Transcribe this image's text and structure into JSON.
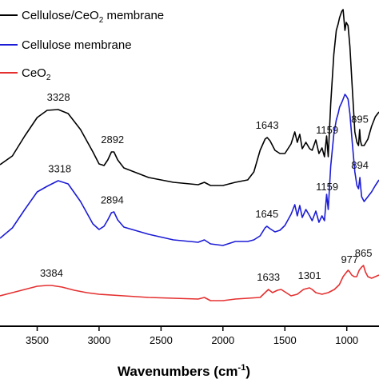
{
  "chart_data": {
    "type": "line",
    "title": "",
    "xlabel": "Wavenumbers (cm",
    "xlabel_sup": "-1",
    "xlabel_close": ")",
    "ylabel": "",
    "xlim": [
      3800,
      740
    ],
    "x_reversed": true,
    "x_ticks": [
      3500,
      3000,
      2500,
      2000,
      1500,
      1000
    ],
    "x_tick_labels": [
      "3500",
      "3000",
      "2500",
      "2000",
      "1500",
      "1000"
    ],
    "grid": false,
    "legend_position": "top-left",
    "series": [
      {
        "name": "Cellulose/CeO2 membrane",
        "name_parts": [
          "Cellulose/CeO",
          "2",
          " membrane"
        ],
        "color": "#000000",
        "points": [
          [
            3800,
            206
          ],
          [
            3700,
            195
          ],
          [
            3600,
            170
          ],
          [
            3500,
            147
          ],
          [
            3420,
            138
          ],
          [
            3330,
            137
          ],
          [
            3250,
            142
          ],
          [
            3150,
            162
          ],
          [
            3050,
            190
          ],
          [
            3000,
            205
          ],
          [
            2960,
            207
          ],
          [
            2930,
            200
          ],
          [
            2900,
            190
          ],
          [
            2880,
            190
          ],
          [
            2850,
            200
          ],
          [
            2800,
            210
          ],
          [
            2600,
            222
          ],
          [
            2400,
            228
          ],
          [
            2200,
            231
          ],
          [
            2150,
            228
          ],
          [
            2100,
            232
          ],
          [
            2000,
            232
          ],
          [
            1900,
            228
          ],
          [
            1800,
            225
          ],
          [
            1750,
            215
          ],
          [
            1700,
            188
          ],
          [
            1660,
            174
          ],
          [
            1643,
            172
          ],
          [
            1620,
            176
          ],
          [
            1580,
            188
          ],
          [
            1540,
            192
          ],
          [
            1500,
            192
          ],
          [
            1450,
            180
          ],
          [
            1420,
            165
          ],
          [
            1400,
            178
          ],
          [
            1380,
            168
          ],
          [
            1360,
            186
          ],
          [
            1330,
            178
          ],
          [
            1300,
            186
          ],
          [
            1280,
            188
          ],
          [
            1250,
            175
          ],
          [
            1225,
            192
          ],
          [
            1200,
            185
          ],
          [
            1180,
            196
          ],
          [
            1163,
            170
          ],
          [
            1150,
            196
          ],
          [
            1130,
            130
          ],
          [
            1105,
            68
          ],
          [
            1085,
            38
          ],
          [
            1070,
            30
          ],
          [
            1058,
            22
          ],
          [
            1040,
            14
          ],
          [
            1030,
            12
          ],
          [
            1015,
            38
          ],
          [
            1005,
            28
          ],
          [
            990,
            32
          ],
          [
            975,
            58
          ],
          [
            955,
            112
          ],
          [
            935,
            165
          ],
          [
            918,
            178
          ],
          [
            905,
            182
          ],
          [
            896,
            162
          ],
          [
            890,
            176
          ],
          [
            880,
            182
          ],
          [
            860,
            182
          ],
          [
            830,
            174
          ],
          [
            800,
            158
          ],
          [
            770,
            146
          ],
          [
            740,
            140
          ]
        ]
      },
      {
        "name": "Cellulose membrane",
        "name_parts": [
          "Cellulose membrane"
        ],
        "color": "#1c1cd6",
        "points": [
          [
            3800,
            298
          ],
          [
            3700,
            285
          ],
          [
            3600,
            262
          ],
          [
            3500,
            240
          ],
          [
            3420,
            233
          ],
          [
            3330,
            226
          ],
          [
            3250,
            230
          ],
          [
            3150,
            252
          ],
          [
            3050,
            280
          ],
          [
            3000,
            287
          ],
          [
            2960,
            283
          ],
          [
            2930,
            275
          ],
          [
            2900,
            266
          ],
          [
            2880,
            265
          ],
          [
            2850,
            275
          ],
          [
            2800,
            284
          ],
          [
            2600,
            293
          ],
          [
            2400,
            300
          ],
          [
            2200,
            303
          ],
          [
            2150,
            300
          ],
          [
            2100,
            305
          ],
          [
            2000,
            307
          ],
          [
            1900,
            302
          ],
          [
            1800,
            302
          ],
          [
            1750,
            300
          ],
          [
            1700,
            295
          ],
          [
            1660,
            285
          ],
          [
            1645,
            283
          ],
          [
            1620,
            286
          ],
          [
            1580,
            290
          ],
          [
            1540,
            288
          ],
          [
            1500,
            282
          ],
          [
            1450,
            268
          ],
          [
            1420,
            256
          ],
          [
            1400,
            270
          ],
          [
            1380,
            257
          ],
          [
            1360,
            272
          ],
          [
            1330,
            262
          ],
          [
            1300,
            270
          ],
          [
            1280,
            276
          ],
          [
            1250,
            264
          ],
          [
            1225,
            278
          ],
          [
            1200,
            270
          ],
          [
            1180,
            276
          ],
          [
            1163,
            243
          ],
          [
            1150,
            262
          ],
          [
            1130,
            208
          ],
          [
            1105,
            168
          ],
          [
            1085,
            150
          ],
          [
            1070,
            142
          ],
          [
            1058,
            134
          ],
          [
            1040,
            128
          ],
          [
            1030,
            124
          ],
          [
            1015,
            118
          ],
          [
            1005,
            120
          ],
          [
            990,
            124
          ],
          [
            975,
            142
          ],
          [
            955,
            180
          ],
          [
            935,
            215
          ],
          [
            918,
            232
          ],
          [
            905,
            236
          ],
          [
            894,
            222
          ],
          [
            888,
            234
          ],
          [
            880,
            246
          ],
          [
            860,
            252
          ],
          [
            830,
            246
          ],
          [
            800,
            240
          ],
          [
            770,
            232
          ],
          [
            740,
            225
          ]
        ]
      },
      {
        "name": "CeO2",
        "name_parts": [
          "CeO",
          "2"
        ],
        "color": "#e53030",
        "points": [
          [
            3800,
            370
          ],
          [
            3700,
            366
          ],
          [
            3600,
            362
          ],
          [
            3500,
            358
          ],
          [
            3420,
            357
          ],
          [
            3384,
            357
          ],
          [
            3300,
            359
          ],
          [
            3200,
            363
          ],
          [
            3100,
            366
          ],
          [
            3000,
            368
          ],
          [
            2800,
            370
          ],
          [
            2600,
            372
          ],
          [
            2400,
            373
          ],
          [
            2200,
            374
          ],
          [
            2150,
            372
          ],
          [
            2100,
            376
          ],
          [
            2000,
            376
          ],
          [
            1900,
            374
          ],
          [
            1800,
            373
          ],
          [
            1700,
            372
          ],
          [
            1660,
            366
          ],
          [
            1633,
            362
          ],
          [
            1600,
            366
          ],
          [
            1560,
            363
          ],
          [
            1530,
            362
          ],
          [
            1500,
            365
          ],
          [
            1450,
            370
          ],
          [
            1400,
            368
          ],
          [
            1350,
            362
          ],
          [
            1301,
            360
          ],
          [
            1280,
            362
          ],
          [
            1250,
            366
          ],
          [
            1200,
            368
          ],
          [
            1150,
            366
          ],
          [
            1100,
            362
          ],
          [
            1060,
            356
          ],
          [
            1030,
            346
          ],
          [
            1000,
            340
          ],
          [
            990,
            338
          ],
          [
            977,
            340
          ],
          [
            960,
            344
          ],
          [
            940,
            346
          ],
          [
            920,
            346
          ],
          [
            900,
            338
          ],
          [
            880,
            334
          ],
          [
            865,
            332
          ],
          [
            850,
            340
          ],
          [
            830,
            346
          ],
          [
            800,
            348
          ],
          [
            770,
            346
          ],
          [
            740,
            344
          ]
        ]
      }
    ],
    "peak_labels": [
      {
        "text": "3328",
        "x": 3328,
        "series": 0
      },
      {
        "text": "2892",
        "x": 2892,
        "series": 0
      },
      {
        "text": "1643",
        "x": 1643,
        "series": 0
      },
      {
        "text": "1159",
        "x": 1159,
        "series": 0
      },
      {
        "text": "895",
        "x": 895,
        "series": 0
      },
      {
        "text": "3318",
        "x": 3318,
        "series": 1
      },
      {
        "text": "2894",
        "x": 2894,
        "series": 1
      },
      {
        "text": "1645",
        "x": 1645,
        "series": 1
      },
      {
        "text": "1159",
        "x": 1159,
        "series": 1
      },
      {
        "text": "894",
        "x": 894,
        "series": 1
      },
      {
        "text": "3384",
        "x": 3384,
        "series": 2
      },
      {
        "text": "1633",
        "x": 1633,
        "series": 2
      },
      {
        "text": "1301",
        "x": 1301,
        "series": 2
      },
      {
        "text": "977",
        "x": 977,
        "series": 2
      },
      {
        "text": "865",
        "x": 865,
        "series": 2
      }
    ]
  }
}
